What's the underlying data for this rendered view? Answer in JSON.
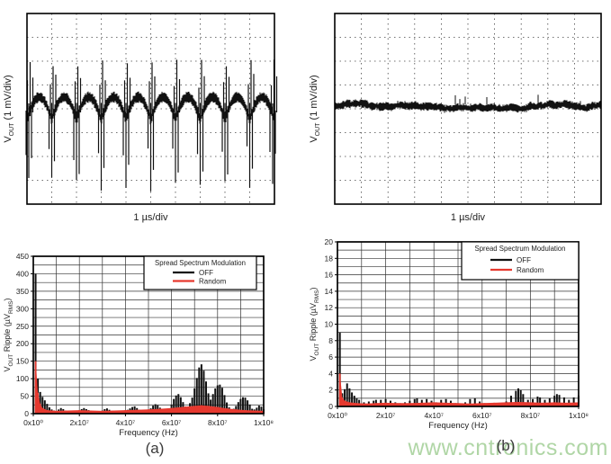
{
  "captions": {
    "a": "(a)",
    "b": "(b)"
  },
  "watermark": {
    "text": "www.cntronics.com",
    "color": "#b0d6a6"
  },
  "colors": {
    "trace": "#111111",
    "off_series": "#111111",
    "random_series": "#e6392f",
    "grid": "#333333",
    "scope_grid": "#444444",
    "border": "#000000"
  },
  "chart_data": [
    {
      "type": "line",
      "subtype": "ripple",
      "panel": "(a) time domain",
      "description": "Output ripple waveform, spread spectrum OFF: ~10 periods of switching ripple with tall switching spikes",
      "ylabel_parts": [
        {
          "t": "V"
        },
        {
          "t": "OUT",
          "sub": true
        },
        {
          "t": " (1 mV/div)"
        }
      ],
      "xlabel": "1 µs/div",
      "y_scale": "1 mV/div",
      "x_scale": "1 µs/div",
      "x_divisions": 10,
      "y_divisions": 8,
      "periods_visible": 10,
      "ripple_amplitude_div": 0.9,
      "spike_up_div": 1.8,
      "spike_down_div": 3.0
    },
    {
      "type": "line",
      "subtype": "flat",
      "panel": "(b) time domain",
      "description": "Output ripple waveform, spread spectrum Random: flat noise band, no periodic spikes",
      "ylabel_parts": [
        {
          "t": "V"
        },
        {
          "t": "OUT",
          "sub": true
        },
        {
          "t": " (1 mV/div)"
        }
      ],
      "xlabel": "1 µs/div",
      "y_scale": "1 mV/div",
      "x_scale": "1 µs/div",
      "x_divisions": 10,
      "y_divisions": 8,
      "noise_amplitude_div": 0.3
    },
    {
      "type": "bar",
      "panel": "(a) spectrum",
      "legend_title": "Spread Spectrum Modulation",
      "xlabel": "Frequency (Hz)",
      "ylabel_parts": [
        {
          "t": "V"
        },
        {
          "t": "OUT",
          "sub": true
        },
        {
          "t": " Ripple (µV"
        },
        {
          "t": "RMS",
          "sub": true
        },
        {
          "t": ")"
        }
      ],
      "xlim": [
        0,
        100000000.0
      ],
      "ylim": [
        0,
        450
      ],
      "ytick_step": 50,
      "y_minor_step": 25,
      "x_minor_step": 10000000.0,
      "xticks": [
        {
          "v": 0,
          "label": "0x10⁰"
        },
        {
          "v": 20000000.0,
          "label": "2x10⁷"
        },
        {
          "v": 40000000.0,
          "label": "4x10⁷"
        },
        {
          "v": 60000000.0,
          "label": "6x10⁷"
        },
        {
          "v": 80000000.0,
          "label": "8x10⁷"
        },
        {
          "v": 100000000.0,
          "label": "1x10⁸"
        }
      ],
      "x_unit_of_points": "MHz",
      "series": [
        {
          "name": "OFF",
          "color": "#111111",
          "f_mhz": [
            1,
            2,
            3,
            4,
            5,
            6,
            7,
            8,
            9,
            10,
            11,
            12,
            13,
            14,
            15,
            17,
            19,
            20,
            21,
            22,
            23,
            24,
            25,
            27,
            29,
            30,
            31,
            32,
            33,
            34,
            36,
            38,
            40,
            41,
            42,
            43,
            44,
            45,
            46,
            48,
            50,
            51,
            52,
            53,
            54,
            55,
            56,
            58,
            59,
            60,
            61,
            62,
            63,
            64,
            65,
            66,
            67,
            68,
            69,
            70,
            71,
            72,
            73,
            74,
            75,
            76,
            77,
            78,
            79,
            80,
            81,
            82,
            83,
            84,
            85,
            86,
            87,
            88,
            89,
            90,
            91,
            92,
            93,
            94,
            95,
            96,
            97,
            98,
            99,
            100
          ],
          "v": [
            400,
            100,
            62,
            48,
            38,
            28,
            18,
            12,
            9,
            7,
            12,
            16,
            13,
            9,
            7,
            5,
            6,
            9,
            13,
            16,
            13,
            10,
            7,
            5,
            6,
            9,
            13,
            15,
            11,
            8,
            6,
            5,
            8,
            11,
            15,
            19,
            21,
            16,
            11,
            7,
            9,
            15,
            23,
            27,
            24,
            17,
            11,
            8,
            12,
            26,
            42,
            52,
            56,
            47,
            33,
            20,
            18,
            30,
            46,
            72,
            102,
            132,
            141,
            123,
            92,
            58,
            40,
            56,
            72,
            81,
            83,
            74,
            53,
            32,
            18,
            12,
            14,
            22,
            33,
            42,
            47,
            46,
            38,
            26,
            14,
            12,
            17,
            23,
            20,
            13
          ]
        },
        {
          "name": "Random",
          "color": "#e6392f",
          "f_mhz": [
            1,
            2,
            3,
            4,
            6,
            8,
            10,
            15,
            20,
            25,
            30,
            35,
            40,
            45,
            50,
            55,
            60,
            63,
            66,
            70,
            73,
            76,
            80,
            84,
            88,
            92,
            96,
            100
          ],
          "v": [
            150,
            60,
            28,
            16,
            10,
            9,
            8,
            9,
            10,
            9,
            8,
            9,
            10,
            11,
            12,
            14,
            16,
            18,
            20,
            22,
            24,
            22,
            19,
            15,
            12,
            10,
            9,
            8
          ]
        }
      ]
    },
    {
      "type": "bar",
      "panel": "(b) spectrum",
      "legend_title": "Spread Spectrum Modulation",
      "xlabel": "Frequency (Hz)",
      "ylabel_parts": [
        {
          "t": "V"
        },
        {
          "t": "OUT",
          "sub": true
        },
        {
          "t": " Ripple (µV"
        },
        {
          "t": "RMS",
          "sub": true
        },
        {
          "t": ")"
        }
      ],
      "xlim": [
        0,
        100000000.0
      ],
      "ylim": [
        0,
        20
      ],
      "ytick_step": 2,
      "y_minor_step": 1,
      "x_minor_step": 10000000.0,
      "xticks": [
        {
          "v": 0,
          "label": "0x10⁰"
        },
        {
          "v": 20000000.0,
          "label": "2x10⁷"
        },
        {
          "v": 40000000.0,
          "label": "4x10⁷"
        },
        {
          "v": 60000000.0,
          "label": "6x10⁷"
        },
        {
          "v": 80000000.0,
          "label": "8x10⁷"
        },
        {
          "v": 100000000.0,
          "label": "1x10⁸"
        }
      ],
      "x_unit_of_points": "MHz",
      "series": [
        {
          "name": "OFF",
          "color": "#111111",
          "f_mhz": [
            1,
            2,
            3,
            4,
            5,
            6,
            7,
            8,
            9,
            11,
            13,
            15,
            16,
            18,
            20,
            22,
            24,
            26,
            28,
            30,
            32,
            33,
            35,
            37,
            39,
            41,
            43,
            45,
            47,
            49,
            51,
            53,
            55,
            57,
            59,
            61,
            64,
            67,
            70,
            72,
            74,
            75,
            76,
            77,
            79,
            81,
            83,
            84,
            86,
            88,
            90,
            91,
            92,
            94,
            96,
            98,
            100
          ],
          "v": [
            9,
            1.6,
            2.1,
            2.8,
            2.2,
            1.7,
            1.3,
            1.0,
            0.8,
            0.5,
            0.6,
            0.7,
            0.8,
            0.8,
            0.9,
            0.7,
            0.5,
            0.4,
            0.5,
            0.7,
            0.9,
            1.0,
            0.8,
            0.9,
            0.7,
            0.5,
            0.8,
            0.9,
            0.7,
            0.4,
            0.3,
            0.5,
            0.9,
            1.0,
            0.6,
            0.4,
            0.3,
            0.4,
            0.6,
            1.3,
            1.9,
            2.2,
            2.0,
            1.5,
            0.8,
            0.9,
            1.2,
            1.1,
            0.8,
            1.0,
            1.3,
            1.5,
            1.4,
            1.1,
            0.8,
            1.1,
            1.3
          ]
        },
        {
          "name": "Random",
          "color": "#e6392f",
          "f_mhz": [
            1,
            2,
            3,
            5,
            8,
            12,
            16,
            20,
            25,
            30,
            35,
            40,
            45,
            50,
            55,
            60,
            65,
            70,
            75,
            80,
            85,
            90,
            95,
            100
          ],
          "v": [
            4.0,
            1.1,
            0.7,
            0.5,
            0.4,
            0.35,
            0.4,
            0.45,
            0.4,
            0.4,
            0.45,
            0.5,
            0.45,
            0.4,
            0.35,
            0.4,
            0.45,
            0.5,
            0.55,
            0.5,
            0.45,
            0.5,
            0.45,
            0.5
          ]
        }
      ]
    }
  ]
}
